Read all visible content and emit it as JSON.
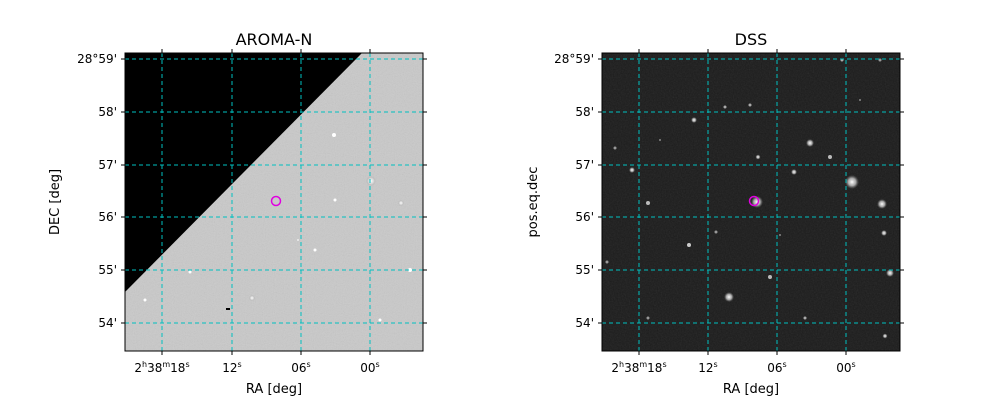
{
  "panels": [
    {
      "title": "AROMA-N",
      "xlabel": "RA [deg]",
      "ylabel": "DEC [deg]",
      "dec_ticks": [
        "28°59'",
        "58'",
        "57'",
        "56'",
        "55'",
        "54'"
      ],
      "ra_ticks": {
        "first": {
          "h": "2",
          "m": "38",
          "s": "18"
        },
        "rest": [
          "12",
          "06",
          "00"
        ]
      },
      "image": "wide-field survey image with black no-data wedge at upper left",
      "marker_color": "#e000e0",
      "grid_color": "#00c0c0"
    },
    {
      "title": "DSS",
      "xlabel": "RA [deg]",
      "ylabel": "pos.eq.dec",
      "dec_ticks": [
        "28°59'",
        "58'",
        "57'",
        "56'",
        "55'",
        "54'"
      ],
      "ra_ticks": {
        "first": {
          "h": "2",
          "m": "38",
          "s": "18"
        },
        "rest": [
          "12",
          "06",
          "00"
        ]
      },
      "image": "digitized sky survey star field",
      "marker_color": "#e000e0",
      "grid_color": "#00c0c0"
    }
  ]
}
